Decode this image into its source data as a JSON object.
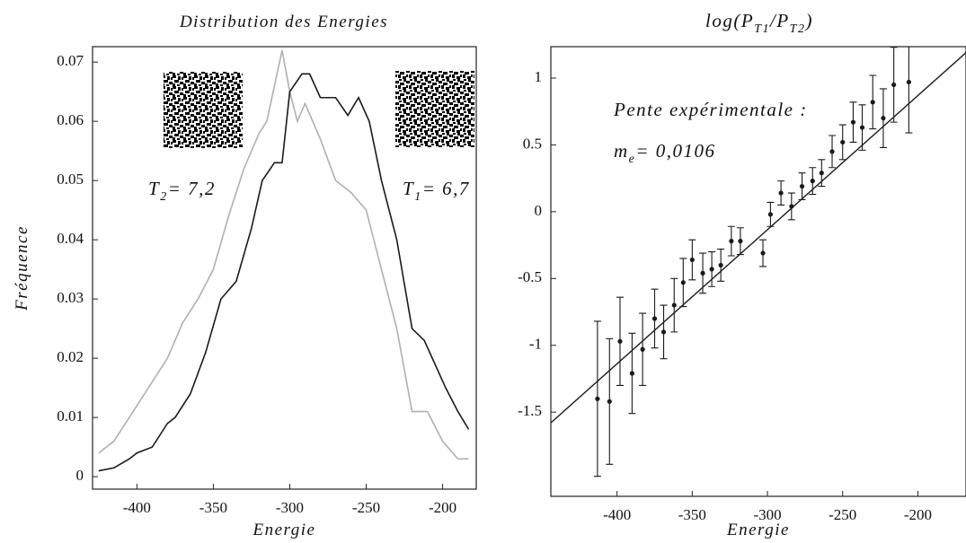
{
  "chart_data": [
    {
      "type": "line",
      "title": "Distribution des Energies",
      "xlabel": "Energie",
      "ylabel": "Fréquence",
      "xlim": [
        -429,
        -178
      ],
      "ylim": [
        -0.0021,
        0.0726
      ],
      "xticks": [
        -400,
        -350,
        -300,
        -250,
        -200
      ],
      "yticks": [
        0,
        0.01,
        0.02,
        0.03,
        0.04,
        0.05,
        0.06,
        0.07
      ],
      "annotations": [
        [
          "T",
          "2",
          "= 7,2"
        ],
        [
          "T",
          "1",
          "= 6,7"
        ]
      ],
      "series": [
        {
          "color": "#b0b0b0",
          "x": [
            -425,
            -415,
            -400,
            -390,
            -380,
            -370,
            -360,
            -350,
            -340,
            -330,
            -320,
            -315,
            -305,
            -300,
            -295,
            -290,
            -280,
            -270,
            -260,
            -250,
            -240,
            -230,
            -220,
            -210,
            -200,
            -190,
            -183
          ],
          "values": [
            0.004,
            0.006,
            0.012,
            0.016,
            0.02,
            0.026,
            0.03,
            0.035,
            0.044,
            0.052,
            0.058,
            0.06,
            0.072,
            0.065,
            0.06,
            0.063,
            0.057,
            0.05,
            0.048,
            0.045,
            0.035,
            0.025,
            0.011,
            0.011,
            0.006,
            0.003,
            0.003
          ]
        },
        {
          "color": "#1a1a1a",
          "x": [
            -425,
            -415,
            -405,
            -400,
            -390,
            -380,
            -375,
            -365,
            -355,
            -345,
            -335,
            -325,
            -318,
            -310,
            -305,
            -300,
            -292,
            -287,
            -280,
            -270,
            -262,
            -255,
            -248,
            -240,
            -230,
            -220,
            -212,
            -205,
            -198,
            -190,
            -183
          ],
          "values": [
            0.001,
            0.0015,
            0.003,
            0.004,
            0.005,
            0.009,
            0.01,
            0.014,
            0.021,
            0.03,
            0.033,
            0.042,
            0.05,
            0.053,
            0.053,
            0.065,
            0.068,
            0.068,
            0.064,
            0.064,
            0.061,
            0.064,
            0.06,
            0.05,
            0.04,
            0.025,
            0.023,
            0.019,
            0.015,
            0.011,
            0.008
          ]
        }
      ]
    },
    {
      "type": "errorbar",
      "title": [
        "log(P",
        "T1",
        "/P",
        "T2",
        ")"
      ],
      "xlabel": "Energie",
      "xlim": [
        -444,
        -168
      ],
      "ylim": [
        -2.13,
        1.235
      ],
      "xticks": [
        -400,
        -350,
        -300,
        -250,
        -200
      ],
      "yticks": [
        -1.5,
        -1,
        -0.5,
        0,
        0.5,
        1
      ],
      "annotations": [
        [
          "Pente expérimentale :"
        ],
        [
          "m",
          "e",
          "= 0,0106"
        ]
      ],
      "color": "#1a1a1a",
      "fit": {
        "x": [
          -444,
          -168
        ],
        "y": [
          -1.58,
          1.19
        ]
      },
      "x": [
        -413,
        -405,
        -398,
        -390,
        -383,
        -375,
        -369,
        -362,
        -356,
        -350,
        -343,
        -337,
        -331,
        -324,
        -318,
        -303,
        -298,
        -291,
        -284,
        -277,
        -270,
        -264,
        -257,
        -250,
        -243,
        -237,
        -230,
        -223,
        -216,
        -206
      ],
      "values": [
        -1.4,
        -1.42,
        -0.97,
        -1.21,
        -1.03,
        -0.8,
        -0.9,
        -0.7,
        -0.53,
        -0.36,
        -0.46,
        -0.43,
        -0.4,
        -0.22,
        -0.22,
        -0.31,
        -0.02,
        0.14,
        0.04,
        0.19,
        0.23,
        0.29,
        0.45,
        0.52,
        0.67,
        0.63,
        0.82,
        0.7,
        0.95,
        0.97
      ],
      "errors": [
        0.58,
        0.47,
        0.33,
        0.3,
        0.27,
        0.22,
        0.2,
        0.2,
        0.18,
        0.15,
        0.15,
        0.13,
        0.12,
        0.11,
        0.1,
        0.1,
        0.09,
        0.09,
        0.1,
        0.1,
        0.1,
        0.1,
        0.12,
        0.13,
        0.15,
        0.17,
        0.2,
        0.22,
        0.28,
        0.38
      ]
    }
  ]
}
